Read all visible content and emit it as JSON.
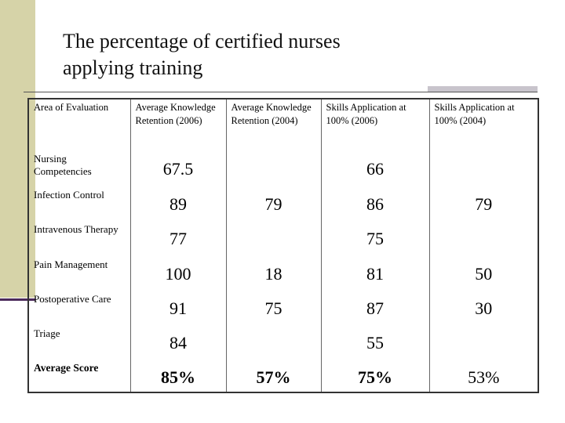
{
  "title": "The percentage of certified nurses applying training",
  "table": {
    "header": [
      "Area of Evaluation",
      "Average Knowledge Retention (2006)",
      "Average Knowledge Retention (2004)",
      "Skills Application at 100% (2006)",
      "Skills Application at 100% (2004)"
    ],
    "rows": [
      [
        "Nursing Competencies",
        "67.5",
        null,
        "66",
        null
      ],
      [
        "Infection Control",
        "89",
        "79",
        "86",
        "79"
      ],
      [
        "Intravenous Therapy",
        "77",
        null,
        "75",
        null
      ],
      [
        "Pain Management",
        "100",
        "18",
        "81",
        "50"
      ],
      [
        "Postoperative Care",
        "91",
        "75",
        "87",
        "30"
      ],
      [
        "Triage",
        "84",
        null,
        "55",
        null
      ],
      [
        "Average Score",
        "85%",
        "57%",
        "75%",
        "53%"
      ]
    ]
  }
}
